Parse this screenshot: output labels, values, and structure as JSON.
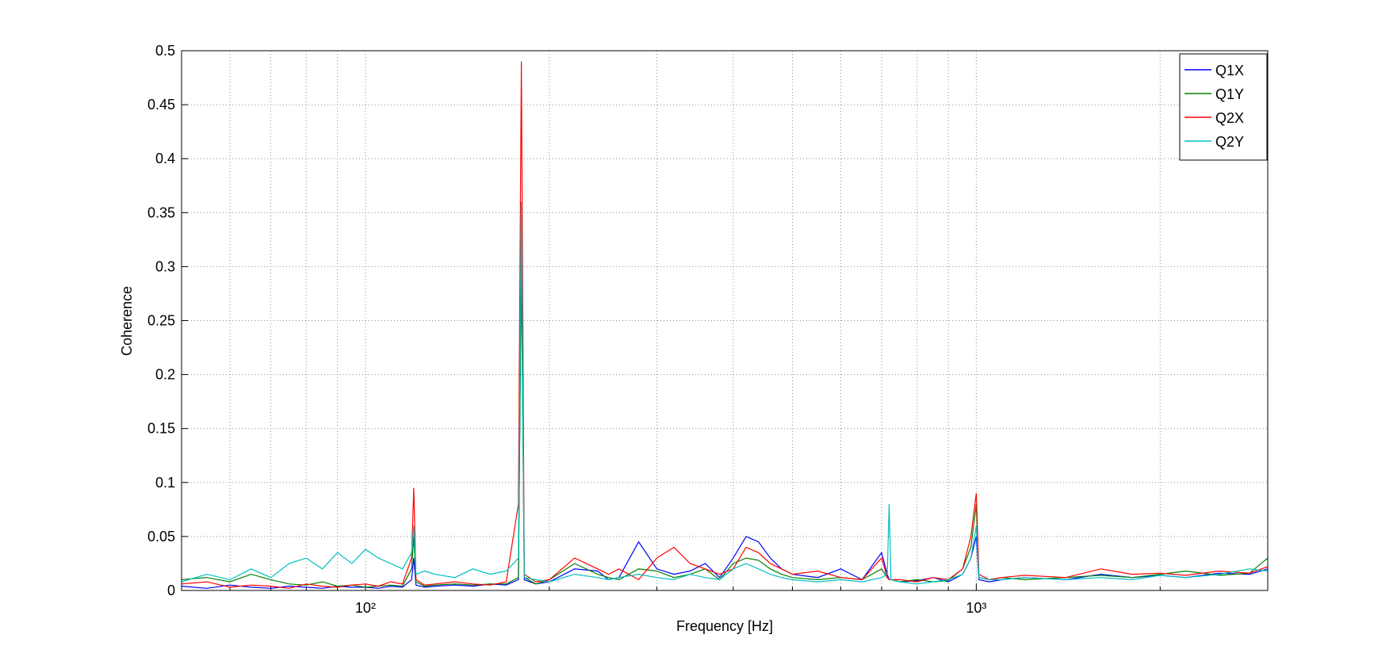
{
  "chart_data": {
    "type": "line",
    "xlabel": "Frequency [Hz]",
    "ylabel": "Coherence",
    "xscale": "log",
    "grid": true,
    "legend": "upper right",
    "xlim": [
      50,
      3000
    ],
    "ylim": [
      0,
      0.5
    ],
    "xticks": [
      {
        "value": 100,
        "label": "10²"
      },
      {
        "value": 1000,
        "label": "10³"
      }
    ],
    "xminorticks": [
      60,
      70,
      80,
      90,
      200,
      300,
      400,
      500,
      600,
      700,
      800,
      900,
      2000,
      3000
    ],
    "yticks": [
      0,
      0.05,
      0.1,
      0.15,
      0.2,
      0.25,
      0.3,
      0.35,
      0.4,
      0.45,
      0.5
    ],
    "x": [
      50,
      55,
      60,
      65,
      70,
      75,
      80,
      85,
      90,
      95,
      100,
      105,
      110,
      115,
      119,
      120,
      121,
      125,
      130,
      140,
      150,
      160,
      170,
      178,
      180,
      182,
      190,
      200,
      220,
      240,
      250,
      260,
      280,
      300,
      320,
      340,
      360,
      380,
      400,
      420,
      440,
      460,
      480,
      500,
      550,
      600,
      650,
      700,
      715,
      720,
      725,
      750,
      800,
      850,
      900,
      950,
      980,
      1000,
      1010,
      1050,
      1100,
      1200,
      1400,
      1600,
      1800,
      2000,
      2200,
      2500,
      2800,
      3000
    ],
    "series": [
      {
        "name": "Q1X",
        "color": "#0000ff",
        "values": [
          0.004,
          0.002,
          0.005,
          0.003,
          0.002,
          0.004,
          0.003,
          0.002,
          0.004,
          0.003,
          0.003,
          0.002,
          0.004,
          0.003,
          0.01,
          0.03,
          0.005,
          0.003,
          0.004,
          0.005,
          0.004,
          0.006,
          0.005,
          0.01,
          0.32,
          0.01,
          0.006,
          0.008,
          0.02,
          0.018,
          0.01,
          0.012,
          0.045,
          0.02,
          0.015,
          0.018,
          0.025,
          0.012,
          0.03,
          0.05,
          0.045,
          0.03,
          0.02,
          0.015,
          0.012,
          0.02,
          0.01,
          0.035,
          0.015,
          0.01,
          0.01,
          0.008,
          0.009,
          0.012,
          0.008,
          0.015,
          0.03,
          0.05,
          0.01,
          0.008,
          0.01,
          0.012,
          0.01,
          0.015,
          0.012,
          0.014,
          0.012,
          0.016,
          0.015,
          0.02
        ]
      },
      {
        "name": "Q1Y",
        "color": "#008000",
        "values": [
          0.01,
          0.012,
          0.008,
          0.015,
          0.01,
          0.006,
          0.005,
          0.008,
          0.004,
          0.005,
          0.003,
          0.004,
          0.005,
          0.004,
          0.02,
          0.05,
          0.008,
          0.004,
          0.005,
          0.006,
          0.005,
          0.006,
          0.006,
          0.012,
          0.3,
          0.012,
          0.006,
          0.01,
          0.025,
          0.015,
          0.012,
          0.01,
          0.02,
          0.018,
          0.012,
          0.015,
          0.02,
          0.01,
          0.025,
          0.03,
          0.028,
          0.02,
          0.015,
          0.012,
          0.01,
          0.012,
          0.01,
          0.02,
          0.012,
          0.01,
          0.01,
          0.008,
          0.01,
          0.008,
          0.009,
          0.02,
          0.04,
          0.08,
          0.012,
          0.01,
          0.012,
          0.01,
          0.012,
          0.014,
          0.012,
          0.015,
          0.018,
          0.014,
          0.016,
          0.03
        ]
      },
      {
        "name": "Q2X",
        "color": "#ff0000",
        "values": [
          0.006,
          0.008,
          0.003,
          0.005,
          0.004,
          0.002,
          0.006,
          0.004,
          0.003,
          0.005,
          0.006,
          0.004,
          0.008,
          0.006,
          0.03,
          0.095,
          0.01,
          0.005,
          0.006,
          0.008,
          0.006,
          0.005,
          0.008,
          0.08,
          0.49,
          0.015,
          0.008,
          0.01,
          0.03,
          0.02,
          0.015,
          0.02,
          0.01,
          0.03,
          0.04,
          0.025,
          0.02,
          0.015,
          0.02,
          0.04,
          0.035,
          0.025,
          0.02,
          0.015,
          0.018,
          0.012,
          0.01,
          0.03,
          0.012,
          0.01,
          0.01,
          0.01,
          0.008,
          0.012,
          0.01,
          0.02,
          0.05,
          0.09,
          0.015,
          0.01,
          0.012,
          0.014,
          0.012,
          0.02,
          0.015,
          0.016,
          0.014,
          0.018,
          0.016,
          0.022
        ]
      },
      {
        "name": "Q2Y",
        "color": "#00bfbf",
        "values": [
          0.008,
          0.015,
          0.01,
          0.02,
          0.012,
          0.025,
          0.03,
          0.02,
          0.035,
          0.025,
          0.038,
          0.03,
          0.025,
          0.02,
          0.035,
          0.06,
          0.015,
          0.018,
          0.015,
          0.012,
          0.02,
          0.015,
          0.018,
          0.03,
          0.36,
          0.012,
          0.01,
          0.008,
          0.015,
          0.012,
          0.01,
          0.012,
          0.015,
          0.012,
          0.01,
          0.015,
          0.012,
          0.01,
          0.02,
          0.025,
          0.02,
          0.015,
          0.012,
          0.01,
          0.008,
          0.01,
          0.008,
          0.012,
          0.015,
          0.08,
          0.01,
          0.008,
          0.006,
          0.008,
          0.01,
          0.015,
          0.03,
          0.06,
          0.012,
          0.01,
          0.01,
          0.012,
          0.01,
          0.012,
          0.01,
          0.014,
          0.012,
          0.015,
          0.02,
          0.018
        ]
      }
    ]
  }
}
